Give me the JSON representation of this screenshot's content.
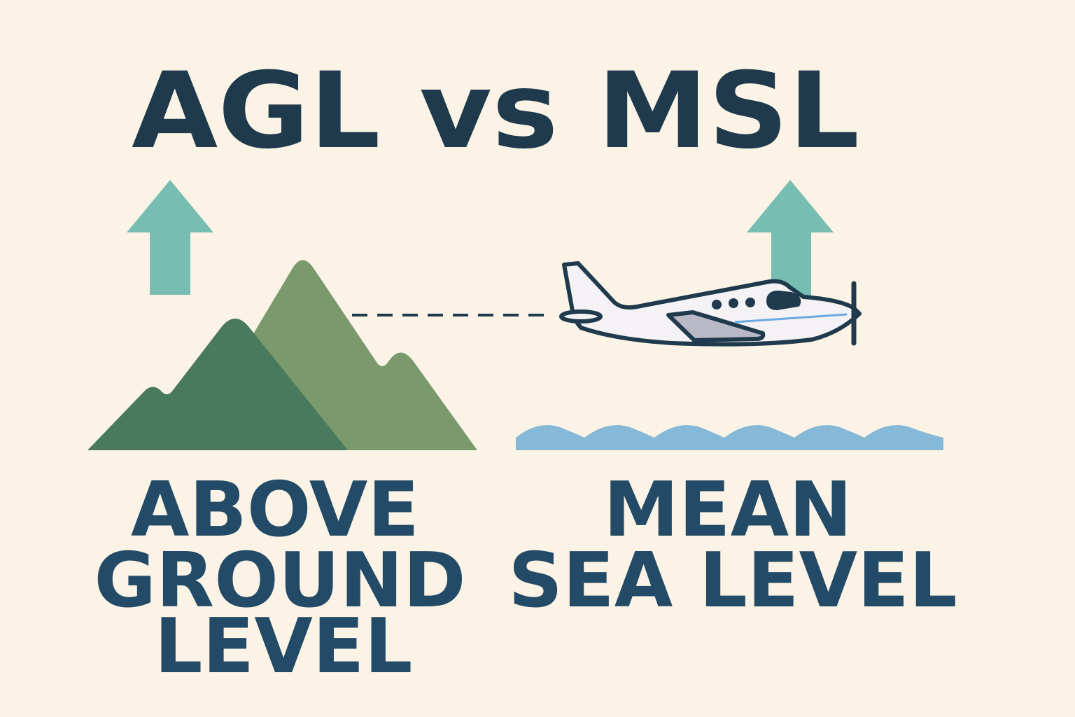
{
  "title": "AGL vs MSL",
  "left": {
    "lines": [
      "ABOVE",
      "GROUND",
      "LEVEL"
    ],
    "icon": "mountain-icon"
  },
  "right": {
    "lines": [
      "MEAN",
      "SEA LEVEL"
    ],
    "icon": "sea-waves-icon"
  },
  "icons": {
    "arrows": "up-arrow-icon",
    "aircraft": "airplane-icon"
  },
  "colors": {
    "background": "#fbf4e6",
    "text": "#1f3a4c",
    "label": "#234a66",
    "arrow": "#78bdb1",
    "mountain_front": "#4a7a5e",
    "mountain_back": "#7a9a6e",
    "water": "#86b8d8"
  }
}
